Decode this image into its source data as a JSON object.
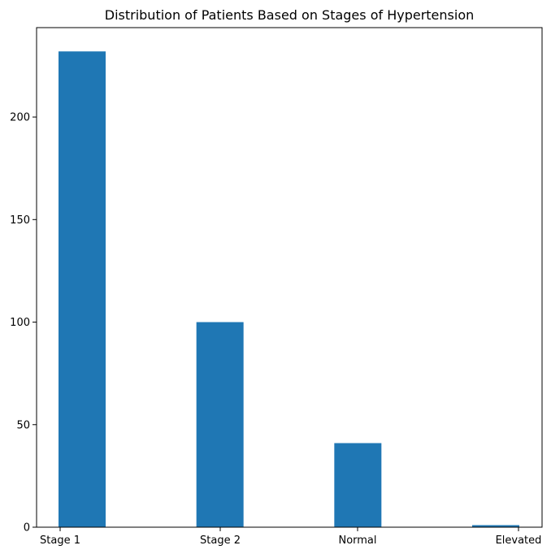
{
  "chart_data": {
    "type": "bar",
    "title": "Distribution of Patients Based on Stages of Hypertension",
    "xlabel": "",
    "ylabel": "",
    "categories": [
      "Stage 1",
      "Stage 2",
      "Normal",
      "Elevated"
    ],
    "values": [
      232,
      100,
      41,
      1
    ],
    "ylim": [
      0,
      243.6
    ],
    "yticks": [
      0,
      50,
      100,
      150,
      200
    ],
    "grid": false,
    "legend": "none",
    "bar_color": "#1f77b4"
  }
}
